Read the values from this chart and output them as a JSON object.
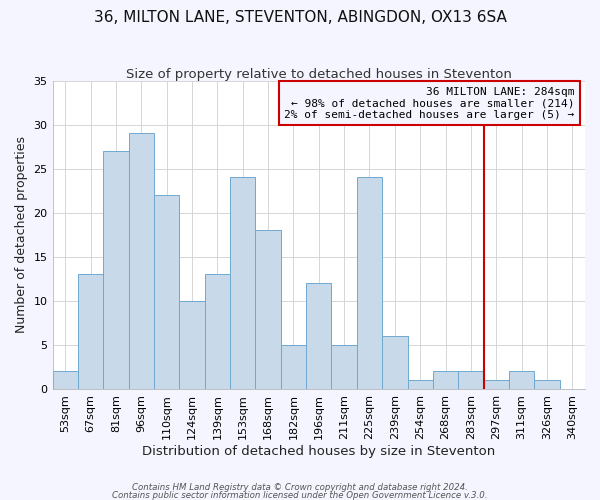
{
  "title": "36, MILTON LANE, STEVENTON, ABINGDON, OX13 6SA",
  "subtitle": "Size of property relative to detached houses in Steventon",
  "xlabel": "Distribution of detached houses by size in Steventon",
  "ylabel": "Number of detached properties",
  "bin_labels": [
    "53sqm",
    "67sqm",
    "81sqm",
    "96sqm",
    "110sqm",
    "124sqm",
    "139sqm",
    "153sqm",
    "168sqm",
    "182sqm",
    "196sqm",
    "211sqm",
    "225sqm",
    "239sqm",
    "254sqm",
    "268sqm",
    "283sqm",
    "297sqm",
    "311sqm",
    "326sqm",
    "340sqm"
  ],
  "bar_heights": [
    2,
    13,
    27,
    29,
    22,
    10,
    13,
    24,
    18,
    5,
    12,
    5,
    24,
    6,
    1,
    2,
    2,
    1,
    2,
    1,
    0
  ],
  "bar_color": "#c8daea",
  "bar_edge_color": "#6fa8d0",
  "grid_color": "#d0d0d0",
  "vline_index": 16,
  "vline_color": "#cc0000",
  "ann_line1": "36 MILTON LANE: 284sqm",
  "ann_line2": "← 98% of detached houses are smaller (214)",
  "ann_line3": "2% of semi-detached houses are larger (5) →",
  "annotation_box_color": "#cc0000",
  "ylim": [
    0,
    35
  ],
  "yticks": [
    0,
    5,
    10,
    15,
    20,
    25,
    30,
    35
  ],
  "footer_line1": "Contains HM Land Registry data © Crown copyright and database right 2024.",
  "footer_line2": "Contains public sector information licensed under the Open Government Licence v.3.0.",
  "bg_color": "#f5f5ff",
  "plot_bg_color": "#ffffff",
  "title_fontsize": 11,
  "subtitle_fontsize": 9.5,
  "xlabel_fontsize": 9.5,
  "ylabel_fontsize": 9,
  "tick_fontsize": 8,
  "ann_fontsize": 8
}
